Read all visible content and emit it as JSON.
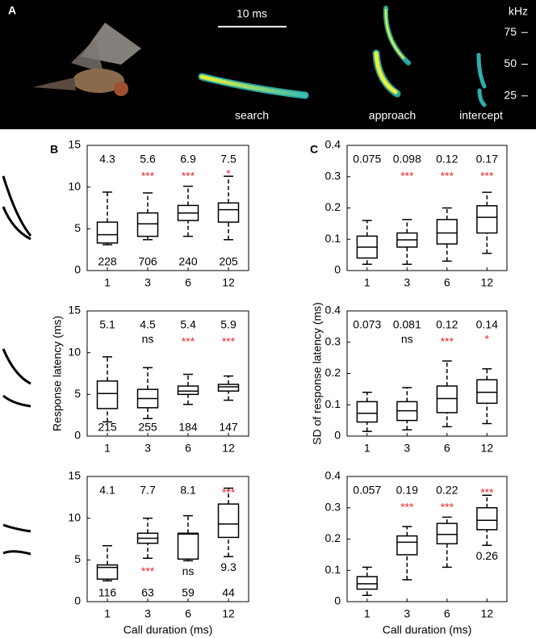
{
  "panel_a": {
    "label": "A",
    "scale_bar": "10 ms",
    "freq_unit": "kHz",
    "freq_ticks": [
      75,
      50,
      25
    ],
    "calls": [
      "search",
      "approach",
      "intercept"
    ]
  },
  "chart_data": [
    {
      "type": "box",
      "panel": "B",
      "categories": [
        "1",
        "3",
        "6",
        "12"
      ],
      "ylim": [
        0,
        15
      ],
      "yticks": [
        0,
        5,
        10,
        15
      ],
      "color": "#000000",
      "boxes": [
        {
          "whislo": 3.1,
          "q1": 3.3,
          "med": 4.3,
          "q3": 5.8,
          "whishi": 9.4
        },
        {
          "whislo": 3.7,
          "q1": 4.1,
          "med": 5.6,
          "q3": 6.9,
          "whishi": 9.3
        },
        {
          "whislo": 4.1,
          "q1": 6.0,
          "med": 6.9,
          "q3": 7.8,
          "whishi": 10.1
        },
        {
          "whislo": 3.7,
          "q1": 5.8,
          "med": 7.3,
          "q3": 8.1,
          "whishi": 11.3
        }
      ],
      "mean_labels": [
        4.3,
        5.6,
        6.9,
        7.5
      ],
      "mean_label_pos": [
        "top",
        "top",
        "top",
        "top"
      ],
      "significance": [
        null,
        "***",
        "***",
        "*"
      ],
      "significance_pos": [
        null,
        "second",
        "second",
        "second"
      ],
      "significance_colors": [
        null,
        "#e8282b",
        "#e8282b",
        "#e8282b"
      ],
      "n": [
        228,
        706,
        240,
        205
      ]
    },
    {
      "type": "box",
      "ylabel": "Response latency (ms)",
      "categories": [
        "1",
        "3",
        "6",
        "12"
      ],
      "ylim": [
        0,
        15
      ],
      "yticks": [
        0,
        5,
        10,
        15
      ],
      "color": "#000000",
      "boxes": [
        {
          "whislo": 1.7,
          "q1": 3.3,
          "med": 5.1,
          "q3": 6.6,
          "whishi": 9.5
        },
        {
          "whislo": 2.1,
          "q1": 3.4,
          "med": 4.5,
          "q3": 5.6,
          "whishi": 8.2
        },
        {
          "whislo": 3.8,
          "q1": 5.0,
          "med": 5.4,
          "q3": 6.0,
          "whishi": 7.4
        },
        {
          "whislo": 4.3,
          "q1": 5.4,
          "med": 5.9,
          "q3": 6.2,
          "whishi": 7.2
        }
      ],
      "mean_labels": [
        5.1,
        4.5,
        5.4,
        5.9
      ],
      "mean_label_pos": [
        "top",
        "top",
        "top",
        "top"
      ],
      "significance": [
        null,
        "ns",
        "***",
        "***"
      ],
      "significance_pos": [
        null,
        "second",
        "second",
        "second"
      ],
      "significance_colors": [
        null,
        "#000000",
        "#e8282b",
        "#e8282b"
      ],
      "n": [
        215,
        255,
        184,
        147
      ]
    },
    {
      "type": "box",
      "xlabel": "Call duration (ms)",
      "categories": [
        "1",
        "3",
        "6",
        "12"
      ],
      "ylim": [
        0,
        15
      ],
      "yticks": [
        0,
        5,
        10,
        15
      ],
      "color": "#000000",
      "boxes": [
        {
          "whislo": 2.5,
          "q1": 2.7,
          "med": 4.1,
          "q3": 4.4,
          "whishi": 6.7
        },
        {
          "whislo": 5.2,
          "q1": 7.0,
          "med": 7.6,
          "q3": 8.2,
          "whishi": 10.0
        },
        {
          "whislo": 4.9,
          "q1": 5.1,
          "med": 8.1,
          "q3": 8.2,
          "whishi": 10.3
        },
        {
          "whislo": 5.4,
          "q1": 7.7,
          "med": 9.3,
          "q3": 11.7,
          "whishi": 13.6
        }
      ],
      "mean_labels": [
        4.1,
        7.7,
        8.1,
        9.3
      ],
      "mean_label_pos": [
        "top",
        "top",
        "top",
        "below"
      ],
      "significance": [
        null,
        "***",
        "ns",
        "***"
      ],
      "significance_pos": [
        null,
        "below",
        "below",
        "top"
      ],
      "significance_colors": [
        null,
        "#e8282b",
        "#000000",
        "#e8282b"
      ],
      "n": [
        116,
        63,
        59,
        44
      ]
    },
    {
      "type": "box",
      "panel": "C",
      "categories": [
        "1",
        "3",
        "6",
        "12"
      ],
      "ylim": [
        0,
        0.4
      ],
      "yticks": [
        0,
        0.1,
        0.2,
        0.3,
        0.4
      ],
      "color": "#000000",
      "boxes": [
        {
          "whislo": 0.02,
          "q1": 0.04,
          "med": 0.075,
          "q3": 0.11,
          "whishi": 0.16
        },
        {
          "whislo": 0.02,
          "q1": 0.075,
          "med": 0.098,
          "q3": 0.12,
          "whishi": 0.163
        },
        {
          "whislo": 0.03,
          "q1": 0.085,
          "med": 0.12,
          "q3": 0.163,
          "whishi": 0.2
        },
        {
          "whislo": 0.055,
          "q1": 0.12,
          "med": 0.17,
          "q3": 0.207,
          "whishi": 0.25
        }
      ],
      "mean_labels": [
        0.075,
        0.098,
        0.12,
        0.17
      ],
      "mean_label_pos": [
        "top",
        "top",
        "top",
        "top"
      ],
      "significance": [
        null,
        "***",
        "***",
        "***"
      ],
      "significance_pos": [
        null,
        "second",
        "second",
        "second"
      ],
      "significance_colors": [
        null,
        "#e8282b",
        "#e8282b",
        "#e8282b"
      ]
    },
    {
      "type": "box",
      "ylabel": "SD of response latency (ms)",
      "categories": [
        "1",
        "3",
        "6",
        "12"
      ],
      "ylim": [
        0,
        0.4
      ],
      "yticks": [
        0,
        0.1,
        0.2,
        0.3,
        0.4
      ],
      "color": "#000000",
      "boxes": [
        {
          "whislo": 0.015,
          "q1": 0.045,
          "med": 0.073,
          "q3": 0.11,
          "whishi": 0.14
        },
        {
          "whislo": 0.02,
          "q1": 0.05,
          "med": 0.081,
          "q3": 0.11,
          "whishi": 0.155
        },
        {
          "whislo": 0.03,
          "q1": 0.075,
          "med": 0.12,
          "q3": 0.16,
          "whishi": 0.24
        },
        {
          "whislo": 0.04,
          "q1": 0.105,
          "med": 0.14,
          "q3": 0.18,
          "whishi": 0.215
        }
      ],
      "mean_labels": [
        0.073,
        0.081,
        0.12,
        0.14
      ],
      "mean_label_pos": [
        "top",
        "top",
        "top",
        "top"
      ],
      "significance": [
        null,
        "ns",
        "***",
        "*"
      ],
      "significance_pos": [
        null,
        "second",
        "second",
        "second"
      ],
      "significance_colors": [
        null,
        "#000000",
        "#e8282b",
        "#e8282b"
      ]
    },
    {
      "type": "box",
      "xlabel": "Call duration (ms)",
      "categories": [
        "1",
        "3",
        "6",
        "12"
      ],
      "ylim": [
        0,
        0.4
      ],
      "yticks": [
        0,
        0.1,
        0.2,
        0.3,
        0.4
      ],
      "color": "#000000",
      "boxes": [
        {
          "whislo": 0.02,
          "q1": 0.04,
          "med": 0.057,
          "q3": 0.08,
          "whishi": 0.11
        },
        {
          "whislo": 0.07,
          "q1": 0.15,
          "med": 0.19,
          "q3": 0.21,
          "whishi": 0.24
        },
        {
          "whislo": 0.11,
          "q1": 0.185,
          "med": 0.215,
          "q3": 0.25,
          "whishi": 0.27
        },
        {
          "whislo": 0.18,
          "q1": 0.23,
          "med": 0.26,
          "q3": 0.3,
          "whishi": 0.34
        }
      ],
      "mean_labels": [
        0.057,
        0.19,
        0.22,
        0.26
      ],
      "mean_label_pos": [
        "top",
        "top",
        "top",
        "below"
      ],
      "significance": [
        null,
        "***",
        "***",
        "***"
      ],
      "significance_pos": [
        null,
        "second",
        "second",
        "top"
      ],
      "significance_colors": [
        null,
        "#e8282b",
        "#e8282b",
        "#e8282b"
      ]
    }
  ]
}
